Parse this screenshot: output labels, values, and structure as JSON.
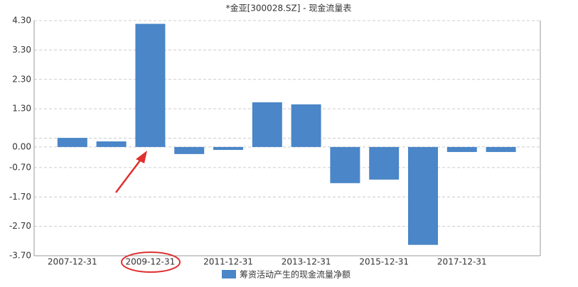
{
  "chart_data": {
    "type": "bar",
    "title": "*金亚[300028.SZ] - 现金流量表",
    "categories": [
      "2007-12-31",
      null,
      "2009-12-31",
      null,
      "2011-12-31",
      null,
      "2013-12-31",
      null,
      "2015-12-31",
      null,
      "2017-12-31",
      null
    ],
    "series": [
      {
        "name": "筹资活动产生的现金流量净额",
        "color": "#4a86c8",
        "values": [
          0.31,
          0.19,
          4.19,
          -0.24,
          -0.1,
          1.52,
          1.45,
          -1.23,
          -1.11,
          -3.33,
          -0.17,
          -0.17
        ]
      }
    ],
    "ylim": [
      -3.7,
      4.3
    ],
    "yticks": [
      {
        "value": 4.3,
        "label": "4.30"
      },
      {
        "value": 3.3,
        "label": "3.30"
      },
      {
        "value": 2.3,
        "label": "2.30"
      },
      {
        "value": 1.3,
        "label": "1.30"
      },
      {
        "value": 0,
        "label": "0.00"
      },
      {
        "value": -0.7,
        "label": "-0.70"
      },
      {
        "value": -1.7,
        "label": "-1.70"
      },
      {
        "value": -2.7,
        "label": "-2.70"
      },
      {
        "value": -3.7,
        "label": "-3.70"
      }
    ],
    "extra_grid": [
      0.3
    ],
    "grid": true
  }
}
